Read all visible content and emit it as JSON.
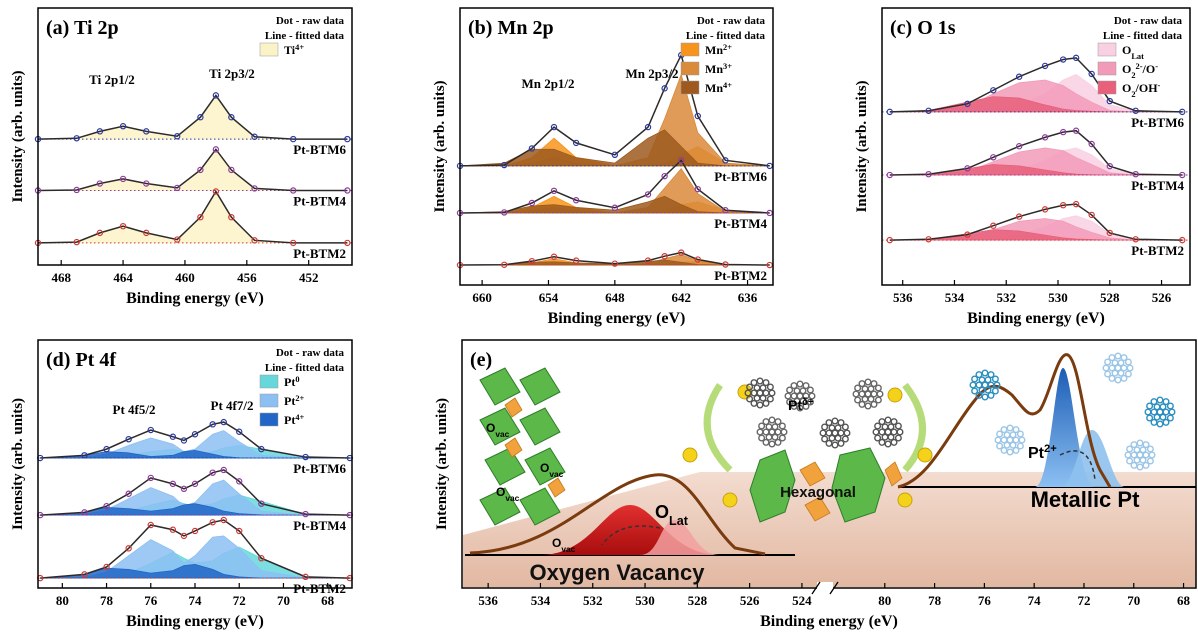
{
  "chart_data": [
    {
      "type": "line",
      "title": "(a) Ti 2p",
      "x_label": "Binding energy (eV)",
      "y_label": "Intensity (arb. units)",
      "notes": [
        "Dot - raw data",
        "Line - fitted data"
      ],
      "annotations": [
        "Ti 2p1/2",
        "Ti 2p3/2"
      ],
      "xlim": [
        469.5,
        449.2
      ],
      "xticks": [
        468,
        464,
        460,
        456,
        452
      ],
      "ylim": [
        0,
        10
      ],
      "fit_color": "#2e2a2a",
      "component_legend": [
        {
          "name": [
            {
              "t": "Ti",
              "sup": "4+"
            }
          ],
          "color": "#FBF3C8"
        }
      ],
      "x": [
        469.5,
        467,
        465.5,
        464,
        462.5,
        460.5,
        459,
        458,
        457,
        455.5,
        453,
        449.5
      ],
      "series": [
        {
          "name": "Pt-BTM6",
          "color": "#2B3A9E",
          "baseline": 4.9,
          "values": [
            4.9,
            4.93,
            5.2,
            5.4,
            5.2,
            5.01,
            5.75,
            6.6,
            5.75,
            4.99,
            4.9,
            4.9
          ],
          "components": [
            [
              4.9,
              4.93,
              5.2,
              5.4,
              5.2,
              5.01,
              5.75,
              6.6,
              5.75,
              4.99,
              4.9,
              4.9
            ]
          ]
        },
        {
          "name": "Pt-BTM4",
          "color": "#8E3A9D",
          "baseline": 2.9,
          "values": [
            2.9,
            2.92,
            3.17,
            3.35,
            3.17,
            3.0,
            3.7,
            4.5,
            3.7,
            2.98,
            2.9,
            2.9
          ],
          "components": [
            [
              2.9,
              2.92,
              3.17,
              3.35,
              3.17,
              3.0,
              3.7,
              4.5,
              3.7,
              2.98,
              2.9,
              2.9
            ]
          ]
        },
        {
          "name": "Pt-BTM2",
          "color": "#D03A35",
          "baseline": 0.86,
          "values": [
            0.86,
            0.89,
            1.25,
            1.51,
            1.25,
            0.99,
            1.86,
            2.86,
            1.86,
            0.96,
            0.86,
            0.86
          ],
          "components": [
            [
              0.86,
              0.89,
              1.25,
              1.51,
              1.25,
              0.99,
              1.86,
              2.86,
              1.86,
              0.96,
              0.86,
              0.86
            ]
          ]
        }
      ]
    },
    {
      "type": "line",
      "title": "(b) Mn 2p",
      "x_label": "Binding energy (eV)",
      "y_label": "Intensity (arb. units)",
      "notes": [
        "Dot - raw data",
        "Line - fitted data"
      ],
      "annotations": [
        "Mn 2p1/2",
        "Mn 2p3/2"
      ],
      "xlim": [
        662,
        633.7
      ],
      "xticks": [
        660,
        654,
        648,
        642,
        636
      ],
      "ylim": [
        0,
        10
      ],
      "fit_color": "#2e2a2a",
      "component_legend": [
        {
          "name": [
            {
              "t": "Mn",
              "sup": "2+"
            }
          ],
          "color": "#F7941D"
        },
        {
          "name": [
            {
              "t": "Mn",
              "sup": "3+"
            }
          ],
          "color": "#D98A3A"
        },
        {
          "name": [
            {
              "t": "Mn",
              "sup": "4+"
            }
          ],
          "color": "#9E5A1E"
        }
      ],
      "x": [
        662,
        658,
        655.5,
        653.5,
        651.5,
        648,
        645,
        643.5,
        642,
        640.5,
        638,
        634
      ],
      "series": [
        {
          "name": "Pt-BTM6",
          "color": "#2B3A9E",
          "baseline": 4.3,
          "values": [
            4.3,
            4.33,
            4.93,
            5.7,
            5.13,
            4.7,
            5.7,
            7.1,
            8.3,
            6.1,
            4.5,
            4.3
          ],
          "components": [
            [
              4.3,
              4.3,
              4.6,
              5.3,
              4.6,
              4.3,
              4.3,
              4.4,
              4.7,
              5.0,
              4.4,
              4.3
            ],
            [
              4.3,
              4.3,
              4.4,
              4.6,
              4.4,
              4.3,
              4.6,
              6.0,
              7.6,
              5.5,
              4.4,
              4.3
            ],
            [
              4.3,
              4.4,
              4.9,
              4.9,
              4.6,
              4.4,
              5.3,
              5.6,
              5.0,
              4.4,
              4.3,
              4.3
            ]
          ]
        },
        {
          "name": "Pt-BTM4",
          "color": "#8E3A9D",
          "baseline": 2.6,
          "values": [
            2.6,
            2.62,
            2.96,
            3.4,
            3.06,
            2.79,
            3.27,
            3.93,
            4.5,
            3.46,
            2.7,
            2.6
          ],
          "components": [
            [
              2.6,
              2.6,
              2.8,
              3.2,
              2.8,
              2.6,
              2.6,
              2.7,
              2.9,
              3.0,
              2.7,
              2.6
            ],
            [
              2.6,
              2.6,
              2.7,
              2.8,
              2.7,
              2.6,
              2.8,
              3.5,
              4.2,
              3.3,
              2.65,
              2.6
            ],
            [
              2.6,
              2.65,
              2.85,
              2.9,
              2.8,
              2.7,
              3.0,
              3.2,
              2.9,
              2.65,
              2.6,
              2.6
            ]
          ]
        },
        {
          "name": "Pt-BTM2",
          "color": "#D03A35",
          "baseline": 0.72,
          "values": [
            0.72,
            0.73,
            0.86,
            1.02,
            0.88,
            0.77,
            0.88,
            1.04,
            1.17,
            0.92,
            0.74,
            0.72
          ],
          "components": [
            [
              0.72,
              0.72,
              0.8,
              0.95,
              0.8,
              0.72,
              0.72,
              0.75,
              0.82,
              0.85,
              0.74,
              0.72
            ],
            [
              0.72,
              0.72,
              0.75,
              0.8,
              0.75,
              0.72,
              0.78,
              0.95,
              1.1,
              0.88,
              0.73,
              0.72
            ],
            [
              0.72,
              0.74,
              0.82,
              0.84,
              0.8,
              0.76,
              0.85,
              0.9,
              0.82,
              0.74,
              0.72,
              0.72
            ]
          ]
        }
      ]
    },
    {
      "type": "line",
      "title": "(c) O 1s",
      "x_label": "Binding energy (eV)",
      "y_label": "Intensity (arb. units)",
      "notes": [
        "Dot - raw data",
        "Line - fitted data"
      ],
      "annotations": [],
      "xlim": [
        536.8,
        524.9
      ],
      "xticks": [
        536,
        534,
        532,
        530,
        528,
        526
      ],
      "ylim": [
        0,
        10
      ],
      "fit_color": "#2e2a2a",
      "component_legend": [
        {
          "name": [
            {
              "t": "O",
              "sub": "Lat"
            }
          ],
          "color": "#F9D0E2"
        },
        {
          "name": [
            {
              "t": "O",
              "sub": "2"
            },
            {
              "sup": "2-"
            },
            {
              "t": "/O",
              "sup": "-"
            }
          ],
          "color": "#F29BB8"
        },
        {
          "name": [
            {
              "t": "O",
              "sub": "2"
            },
            {
              "t": "/OH",
              "sup": "-"
            }
          ],
          "color": "#E8607A"
        }
      ],
      "x": [
        536.5,
        535,
        533.5,
        532.5,
        531.5,
        530.5,
        529.8,
        529.3,
        528.7,
        528,
        527,
        525.2
      ],
      "series": [
        {
          "name": "Pt-BTM6",
          "color": "#2B3A9E",
          "baseline": 6.25,
          "values": [
            6.25,
            6.29,
            6.54,
            7.03,
            7.52,
            7.91,
            8.14,
            8.2,
            7.62,
            6.64,
            6.29,
            6.25
          ],
          "components": [
            [
              6.25,
              6.25,
              6.25,
              6.3,
              6.5,
              6.9,
              7.4,
              7.6,
              7.2,
              6.5,
              6.28,
              6.25
            ],
            [
              6.25,
              6.27,
              6.45,
              6.9,
              7.3,
              7.4,
              7.2,
              6.9,
              6.6,
              6.3,
              6.25,
              6.25
            ],
            [
              6.25,
              6.3,
              6.6,
              6.8,
              6.75,
              6.5,
              6.35,
              6.3,
              6.27,
              6.25,
              6.25,
              6.25
            ]
          ]
        },
        {
          "name": "Pt-BTM4",
          "color": "#8E3A9D",
          "baseline": 3.97,
          "values": [
            3.97,
            4.0,
            4.21,
            4.61,
            5.01,
            5.33,
            5.52,
            5.57,
            5.09,
            4.29,
            4.0,
            3.97
          ],
          "components": [
            [
              3.97,
              3.97,
              3.97,
              4.0,
              4.15,
              4.5,
              4.85,
              4.95,
              4.7,
              4.2,
              3.99,
              3.97
            ],
            [
              3.97,
              3.99,
              4.1,
              4.45,
              4.8,
              4.95,
              4.85,
              4.6,
              4.35,
              4.05,
              3.97,
              3.97
            ],
            [
              3.97,
              4.0,
              4.2,
              4.35,
              4.3,
              4.15,
              4.05,
              4.0,
              3.98,
              3.97,
              3.97,
              3.97
            ]
          ]
        },
        {
          "name": "Pt-BTM2",
          "color": "#D03A35",
          "baseline": 1.62,
          "values": [
            1.62,
            1.65,
            1.82,
            2.14,
            2.47,
            2.73,
            2.88,
            2.92,
            2.53,
            1.88,
            1.65,
            1.62
          ],
          "components": [
            [
              1.62,
              1.62,
              1.62,
              1.65,
              1.8,
              2.1,
              2.4,
              2.5,
              2.3,
              1.85,
              1.64,
              1.62
            ],
            [
              1.62,
              1.64,
              1.75,
              2.0,
              2.3,
              2.4,
              2.3,
              2.1,
              1.9,
              1.7,
              1.62,
              1.62
            ],
            [
              1.62,
              1.65,
              1.85,
              2.0,
              1.95,
              1.8,
              1.7,
              1.66,
              1.64,
              1.62,
              1.62,
              1.62
            ]
          ]
        }
      ]
    },
    {
      "type": "line",
      "title": "(d) Pt 4f",
      "x_label": "Binding energy (eV)",
      "y_label": "Intensity (arb. units)",
      "notes": [
        "Dot - raw data",
        "Line - fitted data"
      ],
      "annotations": [
        "Pt 4f5/2",
        "Pt 4f7/2"
      ],
      "xlim": [
        81.1,
        66.9
      ],
      "xticks": [
        80,
        78,
        76,
        74,
        72,
        70,
        68
      ],
      "ylim": [
        0,
        10
      ],
      "fit_color": "#2e2a2a",
      "component_legend": [
        {
          "name": [
            {
              "t": "Pt",
              "sup": "0"
            }
          ],
          "color": "#66D8DC"
        },
        {
          "name": [
            {
              "t": "Pt",
              "sup": "2+"
            }
          ],
          "color": "#8CC0F2"
        },
        {
          "name": [
            {
              "t": "Pt",
              "sup": "4+"
            }
          ],
          "color": "#2166C6"
        }
      ],
      "x": [
        81,
        79,
        78,
        77,
        76,
        75,
        74.5,
        74,
        73.2,
        72.7,
        72,
        71,
        69,
        67
      ],
      "series": [
        {
          "name": "Pt-BTM6",
          "color": "#2B3A9E",
          "baseline": 5.24,
          "values": [
            5.24,
            5.35,
            5.6,
            6.0,
            6.37,
            6.1,
            5.95,
            6.2,
            6.6,
            6.69,
            6.3,
            5.6,
            5.28,
            5.24
          ],
          "components": [
            [
              5.24,
              5.24,
              5.26,
              5.35,
              5.5,
              5.6,
              5.5,
              5.4,
              5.5,
              5.65,
              5.75,
              5.6,
              5.26,
              5.24
            ],
            [
              5.24,
              5.26,
              5.4,
              5.75,
              6.05,
              5.8,
              5.5,
              5.6,
              6.2,
              6.35,
              5.9,
              5.35,
              5.24,
              5.24
            ],
            [
              5.24,
              5.35,
              5.5,
              5.45,
              5.3,
              5.35,
              5.5,
              5.55,
              5.4,
              5.3,
              5.25,
              5.24,
              5.24,
              5.24
            ]
          ]
        },
        {
          "name": "Pt-BTM4",
          "color": "#8E3A9D",
          "baseline": 2.94,
          "values": [
            2.94,
            3.05,
            3.3,
            3.8,
            4.44,
            4.2,
            4.0,
            4.2,
            4.65,
            4.76,
            4.3,
            3.4,
            2.98,
            2.94
          ],
          "components": [
            [
              2.94,
              2.94,
              2.97,
              3.1,
              3.35,
              3.55,
              3.4,
              3.3,
              3.4,
              3.6,
              3.75,
              3.5,
              2.97,
              2.94
            ],
            [
              2.94,
              2.96,
              3.15,
              3.6,
              4.05,
              3.7,
              3.3,
              3.45,
              4.2,
              4.35,
              3.8,
              3.1,
              2.94,
              2.94
            ],
            [
              2.94,
              3.05,
              3.25,
              3.2,
              3.1,
              3.2,
              3.35,
              3.4,
              3.25,
              3.1,
              3.0,
              2.95,
              2.94,
              2.94
            ]
          ]
        },
        {
          "name": "Pt-BTM2",
          "color": "#D03A35",
          "baseline": 0.4,
          "values": [
            0.4,
            0.55,
            0.85,
            1.6,
            2.54,
            2.35,
            2.1,
            2.3,
            2.65,
            2.74,
            2.3,
            1.2,
            0.45,
            0.4
          ],
          "components": [
            [
              0.4,
              0.4,
              0.45,
              0.6,
              1.0,
              1.45,
              1.2,
              1.0,
              1.1,
              1.4,
              1.65,
              1.2,
              0.45,
              0.4
            ],
            [
              0.4,
              0.42,
              0.65,
              1.3,
              1.95,
              1.5,
              1.0,
              1.3,
              2.05,
              2.1,
              1.6,
              0.7,
              0.4,
              0.4
            ],
            [
              0.4,
              0.55,
              0.8,
              0.75,
              0.6,
              0.7,
              0.9,
              0.95,
              0.75,
              0.55,
              0.45,
              0.4,
              0.4,
              0.4
            ]
          ]
        }
      ]
    },
    {
      "type": "schematic",
      "title": "(e)",
      "x_label": "Binding energy (eV)",
      "y_label": "Intensity (arb. units)",
      "segments": [
        {
          "xlim": [
            537,
            523.5
          ],
          "xticks": [
            536,
            534,
            532,
            530,
            528,
            526,
            524
          ]
        },
        {
          "xlim": [
            82,
            67.5
          ],
          "xticks": [
            80,
            78,
            76,
            74,
            72,
            70,
            68
          ]
        }
      ],
      "labels": [
        "Oxygen Vacancy",
        "Hexagonal",
        "Metallic Pt",
        [
          {
            "t": "Pt",
            "sup": "δ+"
          }
        ],
        [
          {
            "t": "Pt",
            "sup": "2+"
          }
        ],
        [
          {
            "t": "O",
            "sub": "Lat"
          }
        ],
        [
          {
            "t": "O",
            "sub": "vac"
          }
        ],
        [
          {
            "t": "O",
            "sub": "vac"
          }
        ],
        [
          {
            "t": "O",
            "sub": "vac"
          }
        ],
        [
          {
            "t": "O",
            "sub": "vac"
          }
        ]
      ]
    }
  ]
}
